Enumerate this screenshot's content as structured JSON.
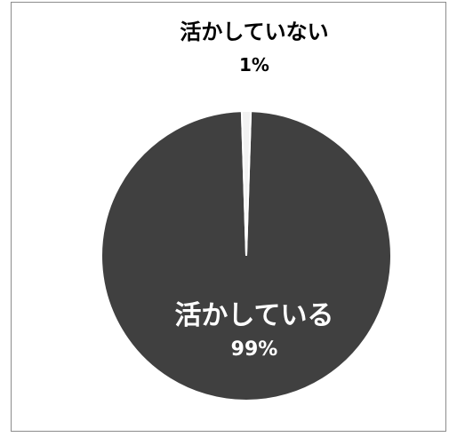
{
  "chart_data": {
    "type": "pie",
    "slices": [
      {
        "label": "活かしている",
        "value": 99,
        "display": "99%"
      },
      {
        "label": "活かしていない",
        "value": 1,
        "display": "1%"
      }
    ],
    "colors": {
      "main": "#404040",
      "minor": "#f2f2f2",
      "separator": "#ffffff"
    }
  }
}
